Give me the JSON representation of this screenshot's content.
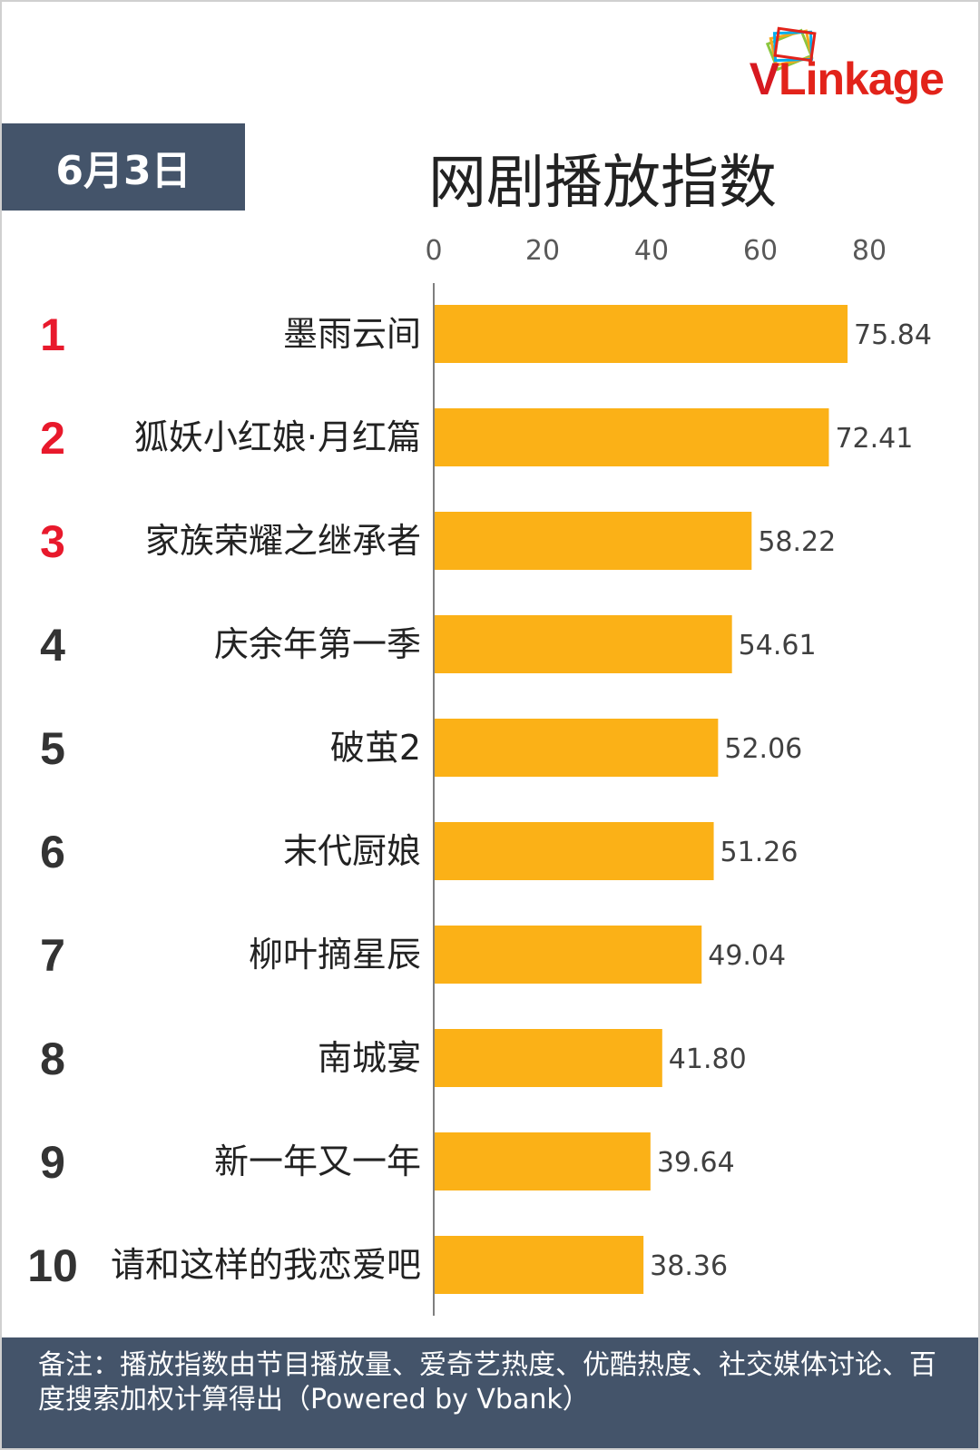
{
  "logo": {
    "text_v": "V",
    "text_rest": "Linkage"
  },
  "date_label": "6月3日",
  "chart_data": {
    "type": "bar",
    "title": "网剧播放指数",
    "orientation": "horizontal",
    "x_ticks": [
      0,
      20,
      40,
      60,
      80
    ],
    "xlim": [
      0,
      80
    ],
    "ranks": [
      "1",
      "2",
      "3",
      "4",
      "5",
      "6",
      "7",
      "8",
      "9",
      "10"
    ],
    "categories": [
      "墨雨云间",
      "狐妖小红娘·月红篇",
      "家族荣耀之继承者",
      "庆余年第一季",
      "破茧2",
      "末代厨娘",
      "柳叶摘星辰",
      "南城宴",
      "新一年又一年",
      "请和这样的我恋爱吧"
    ],
    "values": [
      75.84,
      72.41,
      58.22,
      54.61,
      52.06,
      51.26,
      49.04,
      41.8,
      39.64,
      38.36
    ],
    "value_labels": [
      "75.84",
      "72.41",
      "58.22",
      "54.61",
      "52.06",
      "51.26",
      "49.04",
      "41.80",
      "39.64",
      "38.36"
    ],
    "bar_color": "#fbb117",
    "top_rank_color": "#e8192c",
    "rank_color": "#333333"
  },
  "footer": {
    "note": "备注：播放指数由节目播放量、爱奇艺热度、优酷热度、社交媒体讨论、百度搜索加权计算得出（Powered by Vbank）"
  }
}
